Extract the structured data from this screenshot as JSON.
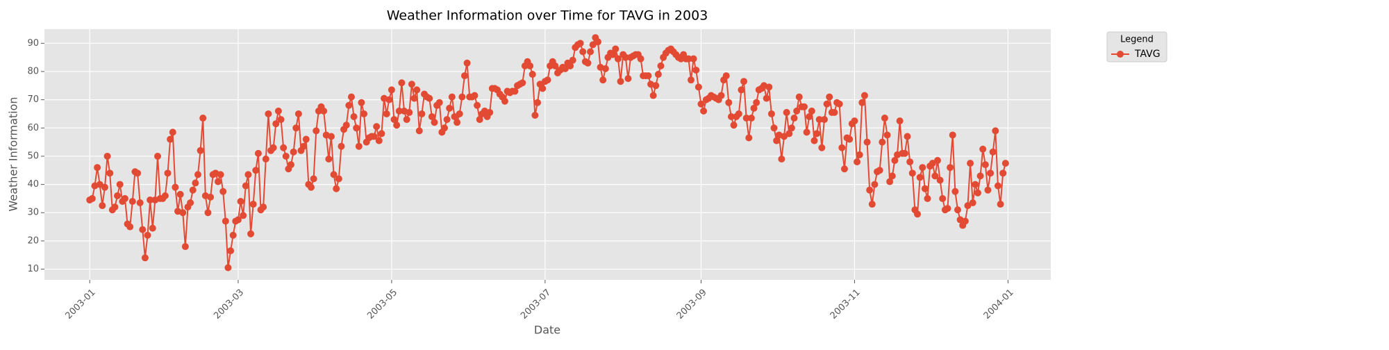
{
  "chart_data": {
    "type": "line",
    "title": "Weather Information over Time for TAVG in 2003",
    "x_label": "Date",
    "y_label": "Weather Information",
    "x": [
      "2003-01-01",
      "2003-01-02",
      "2003-01-03",
      "2003-01-04",
      "2003-01-05",
      "2003-01-06",
      "2003-01-07",
      "2003-01-08",
      "2003-01-09",
      "2003-01-10",
      "2003-01-11",
      "2003-01-12",
      "2003-01-13",
      "2003-01-14",
      "2003-01-15",
      "2003-01-16",
      "2003-01-17",
      "2003-01-18",
      "2003-01-19",
      "2003-01-20",
      "2003-01-21",
      "2003-01-22",
      "2003-01-23",
      "2003-01-24",
      "2003-01-25",
      "2003-01-26",
      "2003-01-27",
      "2003-01-28",
      "2003-01-29",
      "2003-01-30",
      "2003-01-31",
      "2003-02-01",
      "2003-02-02",
      "2003-02-03",
      "2003-02-04",
      "2003-02-05",
      "2003-02-06",
      "2003-02-07",
      "2003-02-08",
      "2003-02-09",
      "2003-02-10",
      "2003-02-11",
      "2003-02-12",
      "2003-02-13",
      "2003-02-14",
      "2003-02-15",
      "2003-02-16",
      "2003-02-17",
      "2003-02-18",
      "2003-02-19",
      "2003-02-20",
      "2003-02-21",
      "2003-02-22",
      "2003-02-23",
      "2003-02-24",
      "2003-02-25",
      "2003-02-26",
      "2003-02-27",
      "2003-02-28",
      "2003-03-01",
      "2003-03-02",
      "2003-03-03",
      "2003-03-04",
      "2003-03-05",
      "2003-03-06",
      "2003-03-07",
      "2003-03-08",
      "2003-03-09",
      "2003-03-10",
      "2003-03-11",
      "2003-03-12",
      "2003-03-13",
      "2003-03-14",
      "2003-03-15",
      "2003-03-16",
      "2003-03-17",
      "2003-03-18",
      "2003-03-19",
      "2003-03-20",
      "2003-03-21",
      "2003-03-22",
      "2003-03-23",
      "2003-03-24",
      "2003-03-25",
      "2003-03-26",
      "2003-03-27",
      "2003-03-28",
      "2003-03-29",
      "2003-03-30",
      "2003-03-31",
      "2003-04-01",
      "2003-04-02",
      "2003-04-03",
      "2003-04-04",
      "2003-04-05",
      "2003-04-06",
      "2003-04-07",
      "2003-04-08",
      "2003-04-09",
      "2003-04-10",
      "2003-04-11",
      "2003-04-12",
      "2003-04-13",
      "2003-04-14",
      "2003-04-15",
      "2003-04-16",
      "2003-04-17",
      "2003-04-18",
      "2003-04-19",
      "2003-04-20",
      "2003-04-21",
      "2003-04-22",
      "2003-04-23",
      "2003-04-24",
      "2003-04-25",
      "2003-04-26",
      "2003-04-27",
      "2003-04-28",
      "2003-04-29",
      "2003-04-30",
      "2003-05-01",
      "2003-05-02",
      "2003-05-03",
      "2003-05-04",
      "2003-05-05",
      "2003-05-06",
      "2003-05-07",
      "2003-05-08",
      "2003-05-09",
      "2003-05-10",
      "2003-05-11",
      "2003-05-12",
      "2003-05-13",
      "2003-05-14",
      "2003-05-15",
      "2003-05-16",
      "2003-05-17",
      "2003-05-18",
      "2003-05-19",
      "2003-05-20",
      "2003-05-21",
      "2003-05-22",
      "2003-05-23",
      "2003-05-24",
      "2003-05-25",
      "2003-05-26",
      "2003-05-27",
      "2003-05-28",
      "2003-05-29",
      "2003-05-30",
      "2003-05-31",
      "2003-06-01",
      "2003-06-02",
      "2003-06-03",
      "2003-06-04",
      "2003-06-05",
      "2003-06-06",
      "2003-06-07",
      "2003-06-08",
      "2003-06-09",
      "2003-06-10",
      "2003-06-11",
      "2003-06-12",
      "2003-06-13",
      "2003-06-14",
      "2003-06-15",
      "2003-06-16",
      "2003-06-17",
      "2003-06-18",
      "2003-06-19",
      "2003-06-20",
      "2003-06-21",
      "2003-06-22",
      "2003-06-23",
      "2003-06-24",
      "2003-06-25",
      "2003-06-26",
      "2003-06-27",
      "2003-06-28",
      "2003-06-29",
      "2003-06-30",
      "2003-07-01",
      "2003-07-02",
      "2003-07-03",
      "2003-07-04",
      "2003-07-05",
      "2003-07-06",
      "2003-07-07",
      "2003-07-08",
      "2003-07-09",
      "2003-07-10",
      "2003-07-11",
      "2003-07-12",
      "2003-07-13",
      "2003-07-14",
      "2003-07-15",
      "2003-07-16",
      "2003-07-17",
      "2003-07-18",
      "2003-07-19",
      "2003-07-20",
      "2003-07-21",
      "2003-07-22",
      "2003-07-23",
      "2003-07-24",
      "2003-07-25",
      "2003-07-26",
      "2003-07-27",
      "2003-07-28",
      "2003-07-29",
      "2003-07-30",
      "2003-07-31",
      "2003-08-01",
      "2003-08-02",
      "2003-08-03",
      "2003-08-04",
      "2003-08-05",
      "2003-08-06",
      "2003-08-07",
      "2003-08-08",
      "2003-08-09",
      "2003-08-10",
      "2003-08-11",
      "2003-08-12",
      "2003-08-13",
      "2003-08-14",
      "2003-08-15",
      "2003-08-16",
      "2003-08-17",
      "2003-08-18",
      "2003-08-19",
      "2003-08-20",
      "2003-08-21",
      "2003-08-22",
      "2003-08-23",
      "2003-08-24",
      "2003-08-25",
      "2003-08-26",
      "2003-08-27",
      "2003-08-28",
      "2003-08-29",
      "2003-08-30",
      "2003-08-31",
      "2003-09-01",
      "2003-09-02",
      "2003-09-03",
      "2003-09-04",
      "2003-09-05",
      "2003-09-06",
      "2003-09-07",
      "2003-09-08",
      "2003-09-09",
      "2003-09-10",
      "2003-09-11",
      "2003-09-12",
      "2003-09-13",
      "2003-09-14",
      "2003-09-15",
      "2003-09-16",
      "2003-09-17",
      "2003-09-18",
      "2003-09-19",
      "2003-09-20",
      "2003-09-21",
      "2003-09-22",
      "2003-09-23",
      "2003-09-24",
      "2003-09-25",
      "2003-09-26",
      "2003-09-27",
      "2003-09-28",
      "2003-09-29",
      "2003-09-30",
      "2003-10-01",
      "2003-10-02",
      "2003-10-03",
      "2003-10-04",
      "2003-10-05",
      "2003-10-06",
      "2003-10-07",
      "2003-10-08",
      "2003-10-09",
      "2003-10-10",
      "2003-10-11",
      "2003-10-12",
      "2003-10-13",
      "2003-10-14",
      "2003-10-15",
      "2003-10-16",
      "2003-10-17",
      "2003-10-18",
      "2003-10-19",
      "2003-10-20",
      "2003-10-21",
      "2003-10-22",
      "2003-10-23",
      "2003-10-24",
      "2003-10-25",
      "2003-10-26",
      "2003-10-27",
      "2003-10-28",
      "2003-10-29",
      "2003-10-30",
      "2003-10-31",
      "2003-11-01",
      "2003-11-02",
      "2003-11-03",
      "2003-11-04",
      "2003-11-05",
      "2003-11-06",
      "2003-11-07",
      "2003-11-08",
      "2003-11-09",
      "2003-11-10",
      "2003-11-11",
      "2003-11-12",
      "2003-11-13",
      "2003-11-14",
      "2003-11-15",
      "2003-11-16",
      "2003-11-17",
      "2003-11-18",
      "2003-11-19",
      "2003-11-20",
      "2003-11-21",
      "2003-11-22",
      "2003-11-23",
      "2003-11-24",
      "2003-11-25",
      "2003-11-26",
      "2003-11-27",
      "2003-11-28",
      "2003-11-29",
      "2003-11-30",
      "2003-12-01",
      "2003-12-02",
      "2003-12-03",
      "2003-12-04",
      "2003-12-05",
      "2003-12-06",
      "2003-12-07",
      "2003-12-08",
      "2003-12-09",
      "2003-12-10",
      "2003-12-11",
      "2003-12-12",
      "2003-12-13",
      "2003-12-14",
      "2003-12-15",
      "2003-12-16",
      "2003-12-17",
      "2003-12-18",
      "2003-12-19",
      "2003-12-20",
      "2003-12-21",
      "2003-12-22",
      "2003-12-23",
      "2003-12-24",
      "2003-12-25",
      "2003-12-26",
      "2003-12-27",
      "2003-12-28",
      "2003-12-29",
      "2003-12-30",
      "2003-12-31"
    ],
    "series": [
      {
        "name": "TAVG",
        "color": "#e24a33",
        "values": [
          34.5,
          35,
          39.5,
          46,
          40,
          32.5,
          39,
          50,
          44,
          31,
          32,
          36,
          40,
          34,
          35,
          26,
          25,
          34,
          44.5,
          44,
          33.5,
          24,
          14,
          22,
          34.5,
          24.5,
          34.5,
          50,
          35,
          35,
          36,
          44,
          56,
          58.5,
          39,
          30.5,
          36.5,
          30,
          18,
          32,
          33.5,
          38,
          40.5,
          43.5,
          52,
          63.5,
          36,
          30,
          35.5,
          43.5,
          44,
          41,
          43.5,
          37.5,
          27,
          10.5,
          16.5,
          22,
          27,
          27.5,
          34,
          29,
          39.5,
          43.5,
          22.5,
          33,
          45,
          51,
          31,
          32,
          49,
          65,
          52,
          53,
          61.5,
          66,
          63,
          53,
          50,
          45.5,
          47,
          51.5,
          60,
          65,
          52,
          53.5,
          56,
          40,
          39,
          42,
          59,
          66,
          67.5,
          66,
          57.5,
          49,
          57,
          43.5,
          38.5,
          42,
          53.5,
          59.5,
          61,
          68,
          71,
          64,
          60,
          53.5,
          69,
          65,
          55,
          56.5,
          57,
          57,
          60.5,
          55.5,
          58,
          70.5,
          65,
          70,
          73.5,
          63,
          61,
          66,
          76,
          66,
          63,
          65.5,
          75.5,
          70.5,
          73.5,
          59,
          65,
          72,
          71,
          70.5,
          64,
          62,
          68,
          69,
          58.5,
          60,
          63,
          67,
          71,
          64,
          62,
          65,
          71,
          78.5,
          83,
          71,
          71,
          71.5,
          68,
          63,
          65,
          66,
          64,
          65.5,
          74,
          74,
          73.5,
          72,
          71,
          69.5,
          73,
          72.5,
          73,
          73,
          75,
          75.5,
          76,
          82,
          83.5,
          82,
          79,
          64.5,
          69,
          75.5,
          74,
          76.5,
          77,
          82,
          83.5,
          82,
          79.5,
          80.5,
          81.5,
          81,
          83,
          82,
          84,
          88.5,
          89.5,
          90,
          87,
          83.5,
          83,
          87,
          89.5,
          92,
          90.5,
          81.5,
          77,
          81,
          85,
          86.5,
          86,
          88,
          84.5,
          76.5,
          86,
          85,
          77.5,
          85,
          85.5,
          86,
          86,
          84.5,
          78.5,
          78.5,
          78.5,
          75.5,
          71.5,
          75,
          79,
          82,
          85,
          86.5,
          87.5,
          88,
          87,
          86,
          85,
          84.5,
          86,
          84.5,
          84.5,
          77,
          84.5,
          80.5,
          74.5,
          68.5,
          66,
          70,
          70.5,
          71.5,
          71,
          70.5,
          70,
          71.5,
          77,
          78.5,
          69,
          64,
          61,
          64,
          65,
          73.5,
          76.5,
          63.5,
          56.5,
          63.5,
          67,
          69,
          73.5,
          74,
          75,
          70.5,
          74.5,
          65,
          60,
          55.5,
          57.5,
          49,
          57,
          65.5,
          58,
          60,
          63.5,
          66,
          71,
          67.5,
          67.5,
          58.5,
          64,
          66,
          55.5,
          58,
          63,
          53,
          63,
          68.5,
          71,
          65.5,
          65.5,
          69,
          68.5,
          53,
          45.5,
          56.5,
          56,
          61.5,
          62.5,
          48,
          50.5,
          69,
          71.5,
          55,
          38,
          33,
          40,
          44.5,
          45,
          55,
          63.5,
          57.5,
          41,
          43,
          48.5,
          50.5,
          62.5,
          51,
          51,
          57,
          48,
          44,
          31,
          29.5,
          42.5,
          46,
          38.5,
          35,
          46.5,
          47.5,
          43,
          48.5,
          41.5,
          35,
          31,
          31.5,
          46,
          57.5,
          37.5,
          31,
          27.5,
          25.5,
          27,
          32.5,
          47.5,
          33.5,
          40,
          37,
          43,
          52.5,
          47,
          38,
          44,
          51.5,
          59,
          39.5,
          33,
          44,
          47.5
        ]
      }
    ],
    "xlim": [
      "2002-12-14",
      "2004-01-18"
    ],
    "xticks": [
      "2003-01",
      "2003-03",
      "2003-05",
      "2003-07",
      "2003-09",
      "2003-11",
      "2004-01"
    ],
    "ylim": [
      6.2,
      95
    ],
    "yticks": [
      10,
      20,
      30,
      40,
      50,
      60,
      70,
      80,
      90
    ],
    "grid": true,
    "legend_title": "Legend",
    "legend_position": "outside right"
  }
}
